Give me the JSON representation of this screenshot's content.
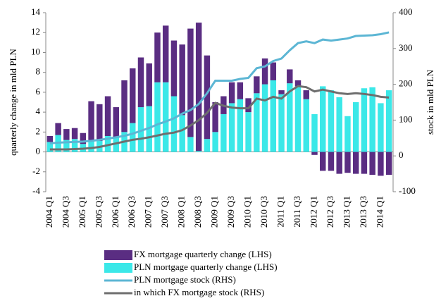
{
  "chart_data": {
    "type": "bar",
    "stacked": true,
    "y_label": "quarterly change in mld PLN",
    "y2_label": "stock in mld PLN",
    "categories": [
      "2004 Q1",
      null,
      "2004 Q3",
      null,
      "2005 Q1",
      null,
      "2005 Q3",
      null,
      "2006 Q1",
      null,
      "2006 Q3",
      null,
      "2007 Q1",
      null,
      "2007 Q3",
      null,
      "2008 Q1",
      null,
      "2008 Q3",
      null,
      "2009 Q1",
      null,
      "2009 Q3",
      null,
      "2010 Q1",
      null,
      "2010 Q3",
      null,
      "2011 Q1",
      null,
      "2011 Q3",
      null,
      "2012 Q1",
      null,
      "2012 Q3",
      null,
      "2013 Q1",
      null,
      "2013 Q3",
      null,
      "2014 Q1",
      null
    ],
    "series": [
      {
        "name": "PLN mortgage quarterly change (LHS)",
        "color": "#3be8e8",
        "values": [
          1.0,
          1.7,
          1.2,
          1.3,
          0.8,
          1.2,
          1.1,
          1.6,
          1.5,
          2.0,
          2.9,
          4.5,
          4.6,
          7.0,
          7.0,
          5.6,
          3.7,
          1.5,
          0.1,
          1.3,
          2.0,
          3.8,
          4.9,
          5.3,
          4.0,
          5.9,
          6.8,
          7.2,
          5.8,
          6.9,
          6.6,
          5.3,
          3.8,
          6.6,
          6.2,
          5.5,
          3.6,
          5.0,
          6.4,
          6.5,
          4.9,
          6.2
        ]
      },
      {
        "name": "FX mortgage quarterly change (LHS)",
        "color": "#5a2d82",
        "values": [
          0.6,
          1.2,
          1.1,
          1.1,
          1.1,
          3.9,
          3.7,
          4.0,
          3.0,
          5.2,
          5.5,
          5.0,
          4.3,
          5.0,
          5.7,
          5.6,
          7.1,
          10.9,
          12.9,
          8.4,
          3.0,
          1.8,
          2.1,
          1.7,
          1.4,
          1.7,
          2.6,
          1.8,
          0.4,
          1.4,
          0.6,
          0.9,
          -0.3,
          -1.9,
          -1.9,
          -2.2,
          -2.1,
          -2.2,
          -2.2,
          -2.3,
          -2.4,
          -2.3
        ]
      },
      {
        "name": "PLN mortgage stock (RHS)",
        "color": "#5cb6d4",
        "axis": "y2",
        "values": [
          35,
          37,
          38,
          39,
          40,
          42,
          45,
          48,
          52,
          56,
          62,
          70,
          78,
          88,
          96,
          105,
          118,
          128,
          145,
          175,
          210,
          210,
          210,
          215,
          218,
          245,
          250,
          265,
          272,
          295,
          315,
          320,
          315,
          325,
          322,
          325,
          328,
          335,
          336,
          337,
          340,
          345
        ]
      },
      {
        "name": "in which FX mortgage stock (RHS)",
        "color": "#6e6e6e",
        "axis": "y2",
        "values": [
          18,
          18,
          18,
          19,
          20,
          22,
          25,
          30,
          35,
          40,
          45,
          48,
          52,
          57,
          62,
          65,
          72,
          85,
          100,
          120,
          148,
          140,
          135,
          133,
          133,
          160,
          155,
          165,
          160,
          180,
          195,
          192,
          180,
          185,
          180,
          175,
          173,
          175,
          173,
          170,
          165,
          163
        ]
      }
    ],
    "legend_order": [
      1,
      0,
      2,
      3
    ],
    "ylim": [
      -4,
      14
    ],
    "yticks": [
      -4,
      -2,
      0,
      2,
      4,
      6,
      8,
      10,
      12,
      14
    ],
    "y2lim": [
      -100,
      400
    ],
    "y2ticks": [
      -100,
      0,
      100,
      200,
      300,
      400
    ]
  }
}
